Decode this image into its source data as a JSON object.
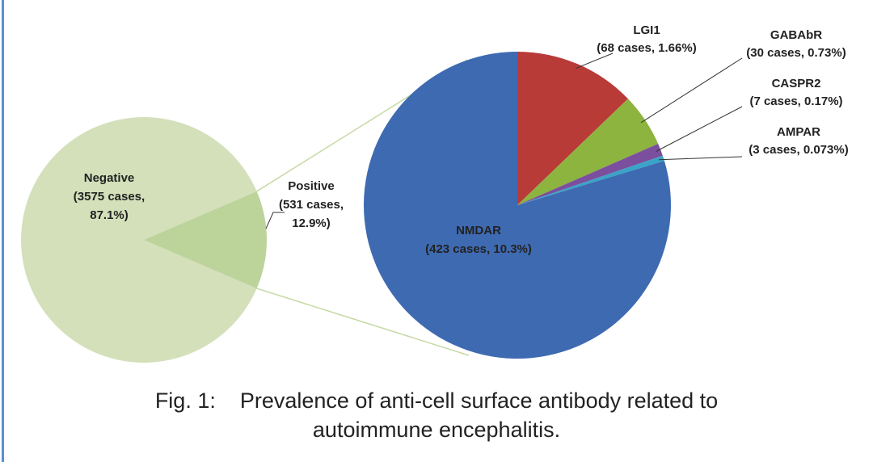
{
  "chart_data": {
    "type": "pie",
    "subtype": "pie-of-pie",
    "colors": {
      "Negative": "#d3e0ba",
      "Positive": "#bcd39a",
      "connector": "#c6d9a4",
      "NMDAR": "#3e6ab1",
      "LGI1": "#b93b38",
      "GABAbR": "#8cb43f",
      "CASPR2": "#7b4f9e",
      "AMPAR": "#3aa3c8",
      "leader": "#333333"
    },
    "main_pie": {
      "slices": [
        {
          "name": "Negative",
          "value": 3575,
          "percent": 87.1,
          "label_lines": [
            "Negative",
            "(3575 cases,",
            "87.1%)"
          ]
        },
        {
          "name": "Positive",
          "value": 531,
          "percent": 12.9,
          "label_lines": [
            "Positive",
            "(531 cases,",
            "12.9%)"
          ]
        }
      ]
    },
    "secondary_pie": {
      "slices": [
        {
          "name": "NMDAR",
          "value": 423,
          "percent": 10.3,
          "label_lines": [
            "NMDAR",
            "(423 cases, 10.3%)"
          ]
        },
        {
          "name": "LGI1",
          "value": 68,
          "percent": 1.66,
          "label_lines": [
            "LGI1",
            "(68 cases, 1.66%)"
          ]
        },
        {
          "name": "GABAbR",
          "value": 30,
          "percent": 0.73,
          "label_lines": [
            "GABAbR",
            "(30 cases, 0.73%)"
          ]
        },
        {
          "name": "CASPR2",
          "value": 7,
          "percent": 0.17,
          "label_lines": [
            "CASPR2",
            "(7 cases, 0.17%)"
          ]
        },
        {
          "name": "AMPAR",
          "value": 3,
          "percent": 0.073,
          "label_lines": [
            "AMPAR",
            "(3 cases, 0.073%)"
          ]
        }
      ]
    }
  },
  "caption": {
    "line1": "Fig. 1:    Prevalence of anti-cell surface antibody related to",
    "line2": "autoimmune encephalitis."
  }
}
